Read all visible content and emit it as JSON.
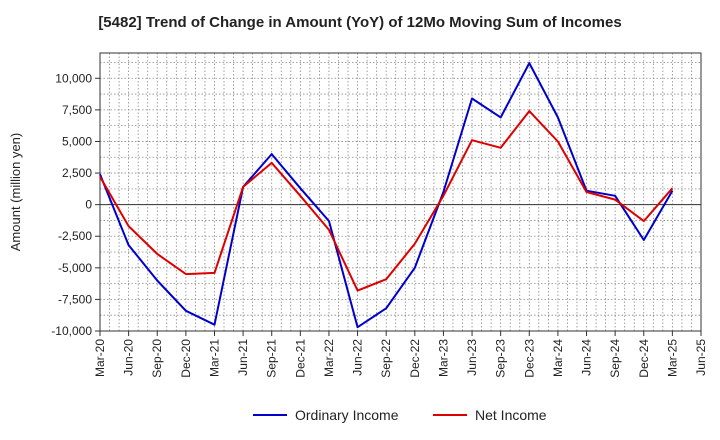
{
  "chart_data": {
    "type": "line",
    "title": "[5482]  Trend of Change in Amount (YoY) of 12Mo Moving Sum of Incomes",
    "xlabel": "",
    "ylabel": "Amount (million yen)",
    "ylim": [
      -10000,
      12000
    ],
    "yticks": [
      -10000,
      -7500,
      -5000,
      -2500,
      0,
      2500,
      5000,
      7500,
      10000
    ],
    "ytick_labels": [
      "-10,000",
      "-7,500",
      "-5,000",
      "-2,500",
      "0",
      "2,500",
      "5,000",
      "7,500",
      "10,000"
    ],
    "categories": [
      "Mar-20",
      "Jun-20",
      "Sep-20",
      "Dec-20",
      "Mar-21",
      "Jun-21",
      "Sep-21",
      "Dec-21",
      "Mar-22",
      "Jun-22",
      "Sep-22",
      "Dec-22",
      "Mar-23",
      "Jun-23",
      "Sep-23",
      "Dec-23",
      "Mar-24",
      "Jun-24",
      "Sep-24",
      "Dec-24",
      "Mar-25",
      "Jun-25"
    ],
    "grid": true,
    "legend_position": "bottom-center",
    "series": [
      {
        "name": "Ordinary Income",
        "color": "#0000cc",
        "values": [
          2400,
          -3200,
          -6000,
          -8400,
          -9500,
          1400,
          4000,
          1300,
          -1300,
          -9700,
          -8200,
          -5000,
          1000,
          8400,
          6900,
          11200,
          6900,
          1100,
          700,
          -2800,
          1100,
          null
        ]
      },
      {
        "name": "Net Income",
        "color": "#dd0000",
        "values": [
          2200,
          -1700,
          -3900,
          -5500,
          -5400,
          1400,
          3300,
          700,
          -2000,
          -6800,
          -5900,
          -3100,
          700,
          5100,
          4500,
          7400,
          5000,
          1000,
          400,
          -1300,
          1300,
          null
        ]
      }
    ]
  }
}
